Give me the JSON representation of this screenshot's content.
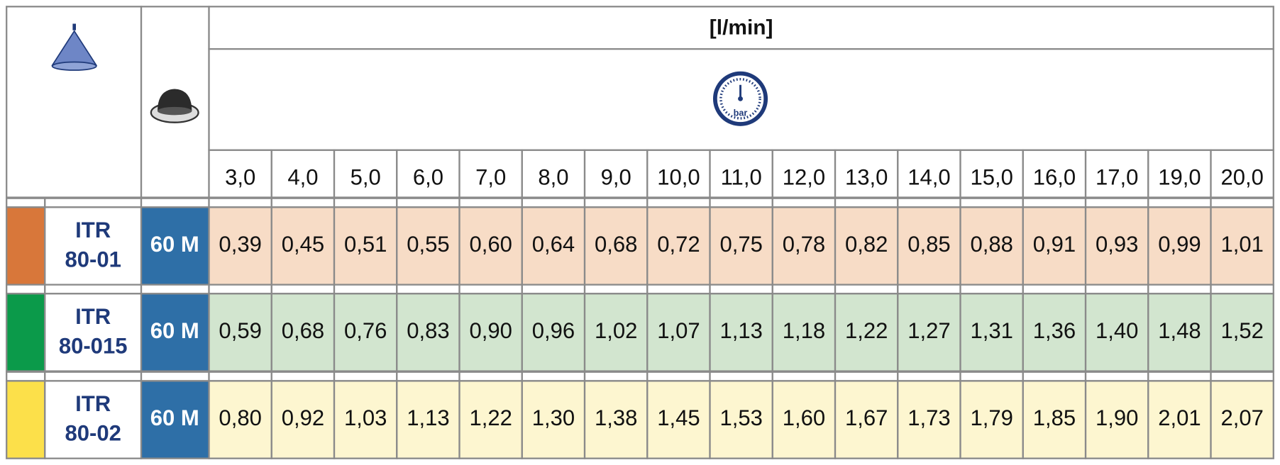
{
  "header": {
    "unit": "[l/min]",
    "gauge_label": "bar",
    "pressures": [
      "3,0",
      "4,0",
      "5,0",
      "6,0",
      "7,0",
      "8,0",
      "9,0",
      "10,0",
      "11,0",
      "12,0",
      "13,0",
      "14,0",
      "15,0",
      "16,0",
      "17,0",
      "19,0",
      "20,0"
    ]
  },
  "rows": [
    {
      "name": [
        "ITR",
        "80-01"
      ],
      "filter": "60 M",
      "color": "#d8773a",
      "tint": "#f7dcc6",
      "values": [
        "0,39",
        "0,45",
        "0,51",
        "0,55",
        "0,60",
        "0,64",
        "0,68",
        "0,72",
        "0,75",
        "0,78",
        "0,82",
        "0,85",
        "0,88",
        "0,91",
        "0,93",
        "0,99",
        "1,01"
      ]
    },
    {
      "name": [
        "ITR",
        "80-015"
      ],
      "filter": "60 M",
      "color": "#0b9a4a",
      "tint": "#d2e5cf",
      "values": [
        "0,59",
        "0,68",
        "0,76",
        "0,83",
        "0,90",
        "0,96",
        "1,02",
        "1,07",
        "1,13",
        "1,18",
        "1,22",
        "1,27",
        "1,31",
        "1,36",
        "1,40",
        "1,48",
        "1,52"
      ]
    },
    {
      "name": [
        "ITR",
        "80-02"
      ],
      "filter": "60 M",
      "color": "#fce04a",
      "tint": "#fdf6d0",
      "values": [
        "0,80",
        "0,92",
        "1,03",
        "1,13",
        "1,22",
        "1,30",
        "1,38",
        "1,45",
        "1,53",
        "1,60",
        "1,67",
        "1,73",
        "1,79",
        "1,85",
        "1,90",
        "2,01",
        "2,07"
      ]
    }
  ]
}
